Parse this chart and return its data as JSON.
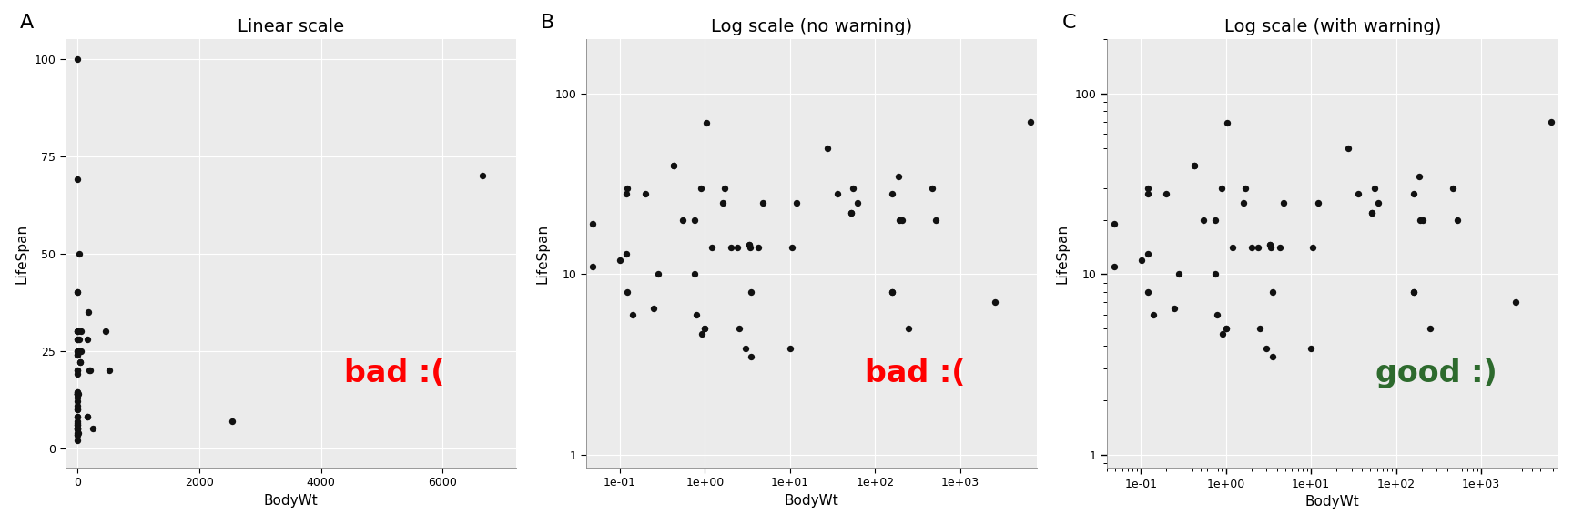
{
  "title_a": "Linear scale",
  "title_b": "Log scale (no warning)",
  "title_c": "Log scale (with warning)",
  "xlabel": "BodyWt",
  "ylabel": "LifeSpan",
  "panel_labels": [
    "A",
    "B",
    "C"
  ],
  "bad_text": "bad :(",
  "good_text": "good :)",
  "bad_color": "#FF0000",
  "good_color": "#2d6a2d",
  "bg_color": "#EBEBEB",
  "dot_color": "#111111",
  "dot_size": 28,
  "bodywt": [
    6654.0,
    1.0,
    3.385,
    0.92,
    2547.0,
    10.55,
    0.023,
    160.0,
    3.3,
    52.16,
    0.425,
    465.0,
    36.33,
    27.66,
    1.04,
    207.0,
    187.1,
    521.0,
    10.0,
    0.023,
    160.0,
    3.3,
    52.16,
    0.425,
    0.101,
    1.0,
    62.0,
    4.288,
    0.12,
    0.023,
    0.122,
    0.048,
    1.7,
    3.5,
    250.0,
    55.5,
    2.0,
    12.0,
    0.28,
    4.75,
    0.55,
    2.4,
    0.75,
    0.785,
    0.2,
    3.5,
    0.12,
    1.62,
    192.0,
    2.5,
    0.122,
    0.048,
    0.75,
    3.0,
    160.0,
    0.9,
    1.2,
    0.023,
    0.01,
    0.005,
    0.25,
    0.14
  ],
  "lifespan": [
    70.0,
    5.0,
    14.0,
    4.7,
    7.0,
    14.0,
    24.0,
    8.0,
    14.5,
    22.0,
    40.0,
    30.0,
    28.0,
    50.0,
    69.0,
    20.0,
    35.0,
    20.0,
    3.9,
    24.0,
    8.0,
    14.5,
    22.0,
    40.0,
    12.0,
    5.0,
    25.0,
    14.0,
    13.0,
    100.0,
    30.0,
    19.0,
    30.0,
    3.5,
    5.0,
    30.0,
    14.0,
    25.0,
    10.0,
    25.0,
    20.0,
    14.0,
    20.0,
    6.0,
    28.0,
    8.0,
    28.0,
    25.0,
    20.0,
    5.0,
    8.0,
    11.0,
    10.0,
    3.9,
    28.0,
    30.0,
    14.0,
    7.0,
    3.5,
    2.0,
    6.5,
    6.0
  ],
  "xlim_linear": [
    -200,
    7200
  ],
  "ylim_linear": [
    -5,
    105
  ],
  "xlim_log": [
    0.04,
    8000
  ],
  "ylim_log": [
    0.85,
    200
  ],
  "xticks_linear": [
    0,
    2000,
    4000,
    6000
  ],
  "yticks_linear": [
    0,
    25,
    50,
    75,
    100
  ],
  "annotation_fontsize": 24,
  "panel_label_fontsize": 16,
  "title_fontsize": 14,
  "axis_label_fontsize": 11,
  "tick_fontsize": 9
}
